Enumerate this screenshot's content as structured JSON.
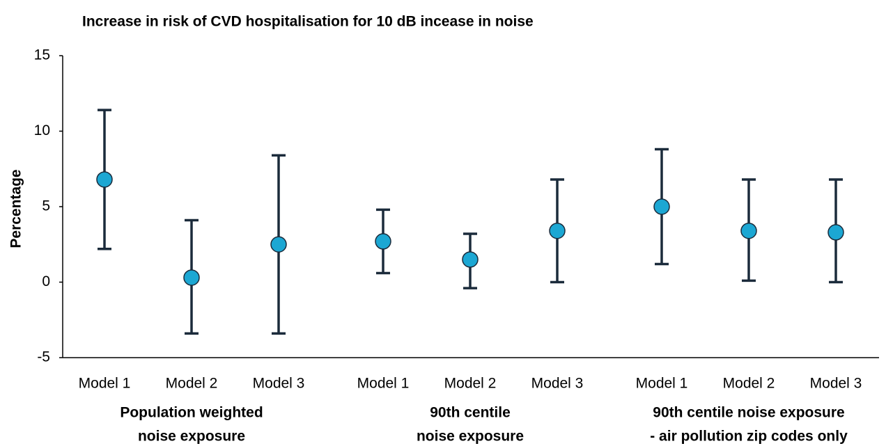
{
  "chart_data": {
    "type": "errorbar",
    "title": "Increase in risk of CVD hospitalisation for 10 dB incease in noise",
    "y_label": "Percentage",
    "ylim": [
      -5,
      15
    ],
    "yticks": [
      -5,
      0,
      5,
      10,
      15
    ],
    "marker_color": "#1ca7d3",
    "bar_color": "#1b2b3b",
    "groups": [
      {
        "label": [
          "Population weighted",
          "noise exposure"
        ],
        "categories": [
          "Model 1",
          "Model 2",
          "Model 3"
        ],
        "values": [
          6.8,
          0.3,
          2.5
        ],
        "lower": [
          2.2,
          -3.4,
          -3.4
        ],
        "upper": [
          11.4,
          4.1,
          8.4
        ]
      },
      {
        "label": [
          "90th centile",
          "noise exposure"
        ],
        "categories": [
          "Model 1",
          "Model 2",
          "Model 3"
        ],
        "values": [
          2.7,
          1.5,
          3.4
        ],
        "lower": [
          0.6,
          -0.4,
          0.0
        ],
        "upper": [
          4.8,
          3.2,
          6.8
        ]
      },
      {
        "label": [
          "90th centile noise exposure",
          "- air pollution zip codes only"
        ],
        "categories": [
          "Model 1",
          "Model 2",
          "Model 3"
        ],
        "values": [
          5.0,
          3.4,
          3.3
        ],
        "lower": [
          1.2,
          0.1,
          0.0
        ],
        "upper": [
          8.8,
          6.8,
          6.8
        ]
      }
    ]
  }
}
